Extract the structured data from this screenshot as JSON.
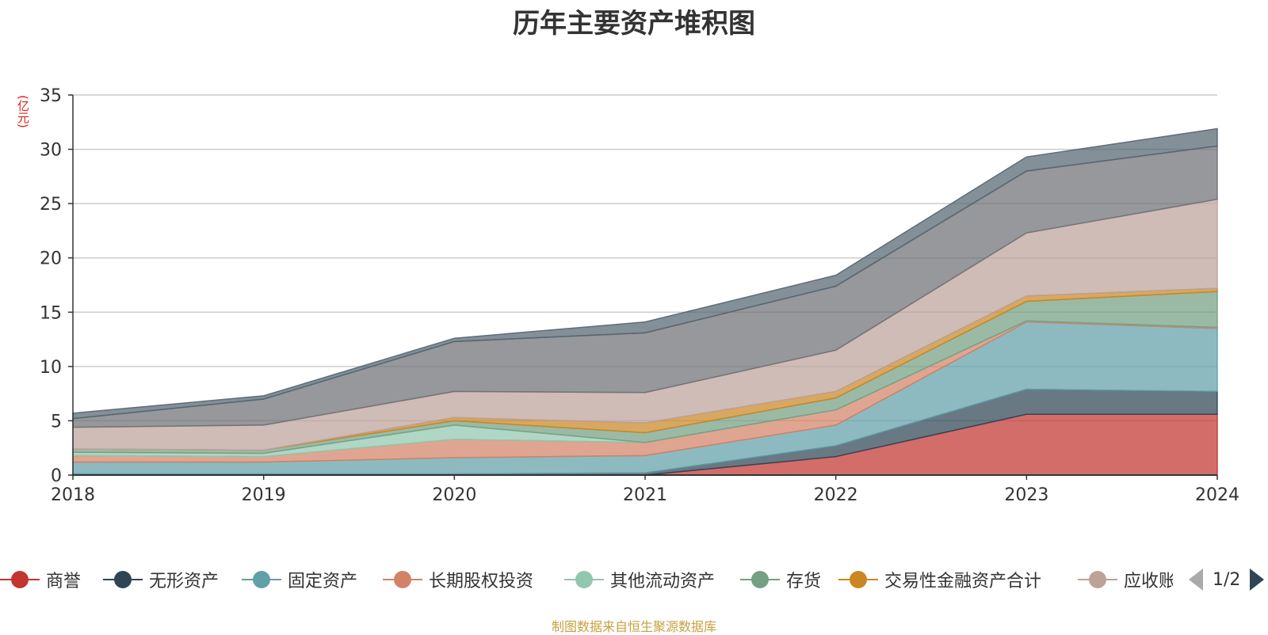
{
  "chart_data": {
    "type": "area",
    "stacked": true,
    "title": "历年主要资产堆积图",
    "ylabel": "(亿元)",
    "x": [
      "2018",
      "2019",
      "2020",
      "2021",
      "2022",
      "2023",
      "2024"
    ],
    "ylim": [
      0,
      35
    ],
    "yticks": [
      0,
      5,
      10,
      15,
      20,
      25,
      30,
      35
    ],
    "grid": true,
    "legend_position": "bottom",
    "series": [
      {
        "name": "商誉",
        "color": "#c23531",
        "values": [
          0,
          0,
          0,
          0,
          1.7,
          5.6,
          5.6
        ]
      },
      {
        "name": "无形资产",
        "color": "#2f4554",
        "values": [
          0.1,
          0.1,
          0.1,
          0.2,
          1.0,
          2.3,
          2.1
        ]
      },
      {
        "name": "固定资产",
        "color": "#61a0a8",
        "values": [
          1.1,
          1.1,
          1.5,
          1.6,
          1.9,
          6.2,
          5.8
        ]
      },
      {
        "name": "长期股权投资",
        "color": "#d48265",
        "values": [
          0.6,
          0.5,
          1.7,
          1.2,
          1.4,
          0.1,
          0.1
        ]
      },
      {
        "name": "其他流动资产",
        "color": "#91c7ae",
        "values": [
          0.3,
          0.3,
          1.3,
          0.0,
          0.0,
          0.0,
          0.0
        ]
      },
      {
        "name": "存货",
        "color": "#749f83",
        "values": [
          0.3,
          0.3,
          0.4,
          0.9,
          1.1,
          1.8,
          3.3
        ]
      },
      {
        "name": "交易性金融资产合计",
        "color": "#ca8622",
        "values": [
          0.0,
          0.0,
          0.3,
          0.9,
          0.6,
          0.5,
          0.3
        ]
      },
      {
        "name": "应收账款",
        "color": "#bda29a",
        "values": [
          2.0,
          2.3,
          2.4,
          2.8,
          3.8,
          5.8,
          8.2
        ]
      },
      {
        "name": "",
        "color": "#6e7074",
        "values": [
          0.8,
          2.4,
          4.6,
          5.5,
          5.9,
          5.7,
          4.9
        ]
      },
      {
        "name": "",
        "color": "#546570",
        "values": [
          0.5,
          0.3,
          0.3,
          1.0,
          1.0,
          1.3,
          1.6
        ]
      }
    ]
  },
  "legend": {
    "visible_labels": [
      "商誉",
      "无形资产",
      "固定资产",
      "长期股权投资",
      "其他流动资产",
      "存货",
      "交易性金融资产合计",
      "应收账款"
    ],
    "page_indicator": "1/2"
  },
  "footer": {
    "source": "制图数据来自恒生聚源数据库"
  }
}
